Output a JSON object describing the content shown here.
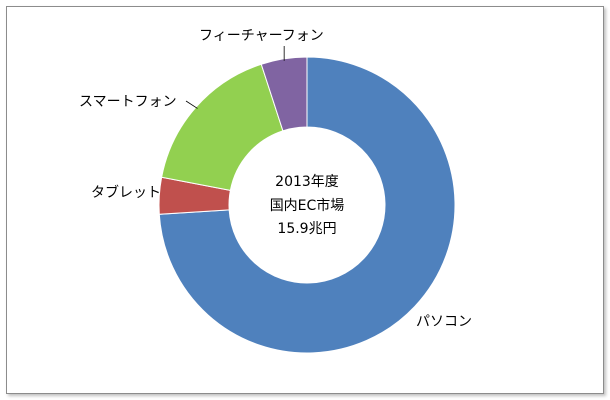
{
  "chart_data": {
    "type": "pie",
    "style": "donut",
    "center_text": [
      "2013年度",
      "国内EC市場",
      "15.9兆円"
    ],
    "categories": [
      "パソコン",
      "タブレット",
      "スマートフォン",
      "フィーチャーフォン"
    ],
    "values": [
      74,
      4,
      17,
      5
    ],
    "colors": [
      "#4f81bd",
      "#c0504d",
      "#92d050",
      "#8064a2"
    ],
    "legend": "none"
  }
}
